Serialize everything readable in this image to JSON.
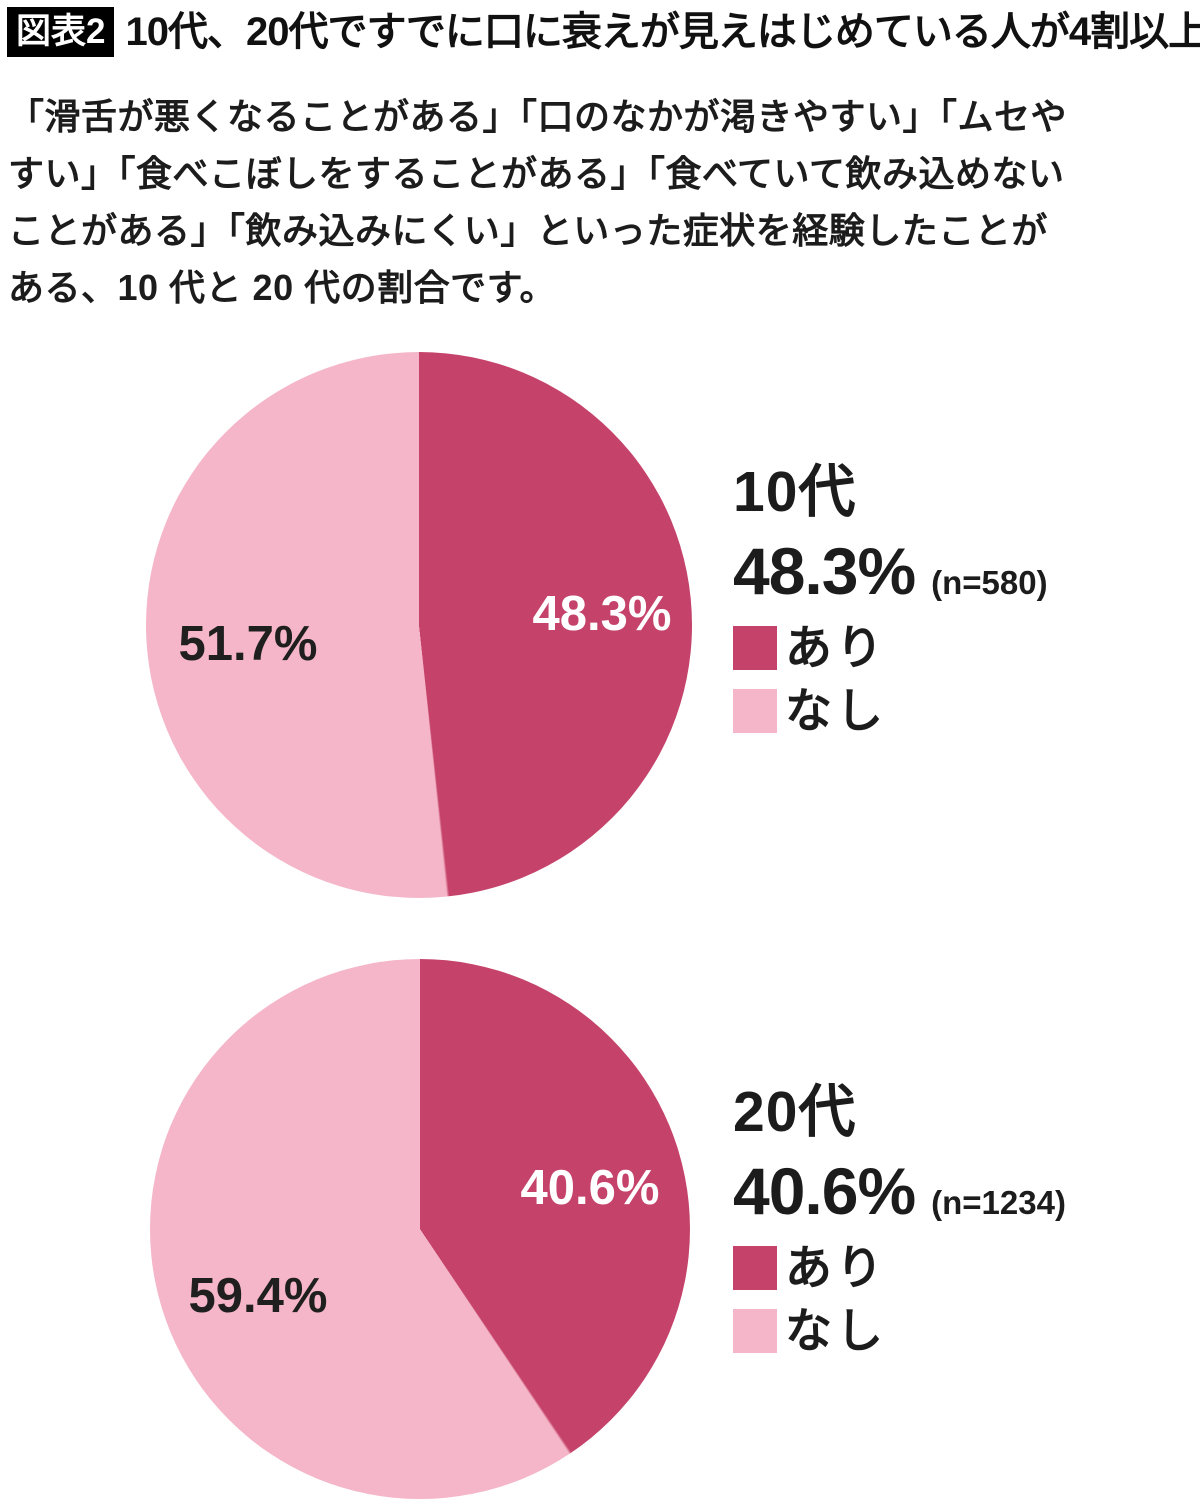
{
  "header": {
    "badge": "図表2",
    "title": "10代、20代ですでに口に衰えが見えはじめている人が4割以上"
  },
  "description_lines": [
    "「滑舌が悪くなることがある」「口のなかが渇きやすい」「ムセや",
    "すい」「食べこぼしをすることがある」「食べていて飲み込めない",
    "ことがある」「飲み込みにくい」といった症状を経験したことが",
    "ある、10 代と 20 代の割合です。"
  ],
  "colors": {
    "yes": "#c5436b",
    "no": "#f4b6c8",
    "text": "#1c1c1c",
    "badge_bg": "#000000",
    "badge_text": "#ffffff"
  },
  "chart_data": [
    {
      "type": "pie",
      "title": "10代",
      "value_label": "48.3%",
      "sample_label": "(n=580)",
      "legend_position": "right",
      "slices": [
        {
          "label": "あり",
          "value": 48.3,
          "pct_label": "48.3%",
          "color": "#c5436b",
          "text_color": "#ffffff"
        },
        {
          "label": "なし",
          "value": 51.7,
          "pct_label": "51.7%",
          "color": "#f4b6c8",
          "text_color": "#1f1f1f"
        }
      ]
    },
    {
      "type": "pie",
      "title": "20代",
      "value_label": "40.6%",
      "sample_label": "(n=1234)",
      "legend_position": "right",
      "slices": [
        {
          "label": "あり",
          "value": 40.6,
          "pct_label": "40.6%",
          "color": "#c5436b",
          "text_color": "#ffffff"
        },
        {
          "label": "なし",
          "value": 59.4,
          "pct_label": "59.4%",
          "color": "#f4b6c8",
          "text_color": "#1f1f1f"
        }
      ]
    }
  ]
}
